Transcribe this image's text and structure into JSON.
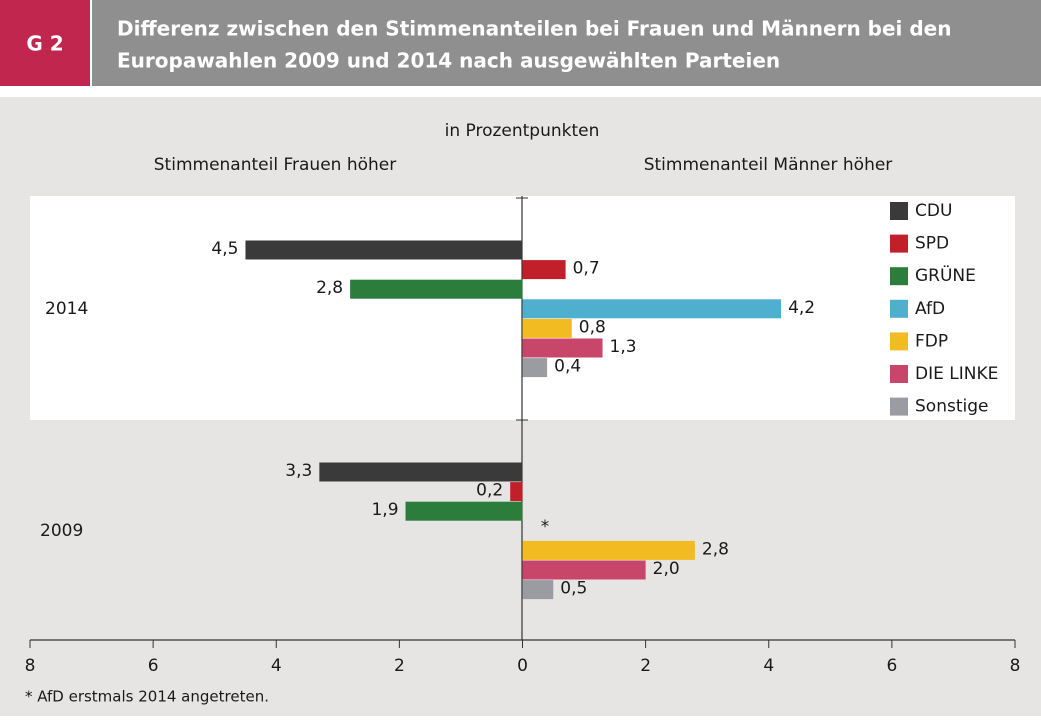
{
  "header": {
    "label": "G 2",
    "title_lines": [
      "Differenz zwischen den Stimmenanteilen bei Frauen und Männern bei den",
      "Europawahlen 2009 und 2014 nach ausgewählten Parteien"
    ]
  },
  "chart_data": {
    "type": "hbar",
    "subtitle": "in Prozentpunkten",
    "left_label": "Stimmenanteil Frauen höher",
    "right_label": "Stimmenanteil Männer höher",
    "categories": [
      "2014",
      "2009"
    ],
    "series": [
      {
        "name": "CDU",
        "color": "#3a3a3a",
        "values": [
          -4.5,
          -3.3
        ],
        "value_labels": [
          "4,5",
          "3,3"
        ]
      },
      {
        "name": "SPD",
        "color": "#c1202b",
        "values": [
          0.7,
          -0.2
        ],
        "value_labels": [
          "0,7",
          "0,2"
        ]
      },
      {
        "name": "GRÜNE",
        "color": "#2c7d3b",
        "values": [
          -2.8,
          -1.9
        ],
        "value_labels": [
          "2,8",
          "1,9"
        ]
      },
      {
        "name": "AfD",
        "color": "#4fafcf",
        "values": [
          4.2,
          null
        ],
        "value_labels": [
          "4,2",
          null
        ]
      },
      {
        "name": "FDP",
        "color": "#f2bb22",
        "values": [
          0.8,
          2.8
        ],
        "value_labels": [
          "0,8",
          "2,8"
        ]
      },
      {
        "name": "DIE LINKE",
        "color": "#c9466b",
        "values": [
          1.3,
          2.0
        ],
        "value_labels": [
          "1,3",
          "2,0"
        ]
      },
      {
        "name": "Sonstige",
        "color": "#9a9ca1",
        "values": [
          0.4,
          0.5
        ],
        "value_labels": [
          "0,4",
          "0,5"
        ]
      }
    ],
    "annotation": "*",
    "footnote": "* AfD erstmals 2014 angetreten.",
    "xlim": [
      -8,
      8
    ],
    "xticks": [
      {
        "value": -8,
        "label": "8"
      },
      {
        "value": -6,
        "label": "6"
      },
      {
        "value": -4,
        "label": "4"
      },
      {
        "value": -2,
        "label": "2"
      },
      0,
      2,
      4,
      6,
      8
    ],
    "legend": "top-right"
  }
}
